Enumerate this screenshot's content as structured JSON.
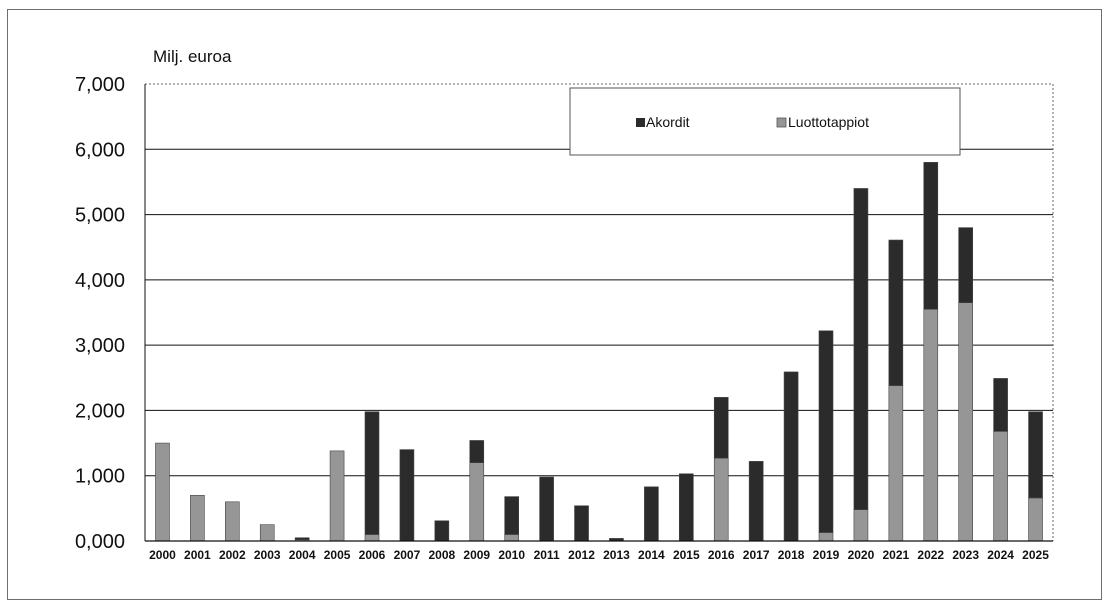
{
  "chart_data": {
    "type": "bar",
    "stacked": true,
    "ylabel": "Milj. euroa",
    "ylim": [
      0,
      7000
    ],
    "yticks": [
      "0,000",
      "1,000",
      "2,000",
      "3,000",
      "4,000",
      "5,000",
      "6,000",
      "7,000"
    ],
    "grid": true,
    "legend_position": "top-right",
    "categories": [
      "2000",
      "2001",
      "2002",
      "2003",
      "2004",
      "2005",
      "2006",
      "2007",
      "2008",
      "2009",
      "2010",
      "2011",
      "2012",
      "2013",
      "2014",
      "2015",
      "2016",
      "2017",
      "2018",
      "2019",
      "2020",
      "2021",
      "2022",
      "2023",
      "2024",
      "2025"
    ],
    "series": [
      {
        "name": "Luottotappiot",
        "color": "#969696",
        "values": [
          1500,
          700,
          600,
          250,
          20,
          1380,
          100,
          0,
          0,
          1200,
          100,
          0,
          0,
          0,
          0,
          0,
          1270,
          0,
          0,
          130,
          480,
          2380,
          3550,
          3650,
          1680,
          660
        ]
      },
      {
        "name": "Akordit",
        "color": "#2b2b2b",
        "values": [
          0,
          0,
          0,
          0,
          30,
          0,
          1880,
          1400,
          310,
          340,
          580,
          980,
          540,
          40,
          830,
          1030,
          930,
          1220,
          2590,
          3090,
          4920,
          2230,
          2250,
          1150,
          810,
          1320
        ]
      }
    ]
  }
}
